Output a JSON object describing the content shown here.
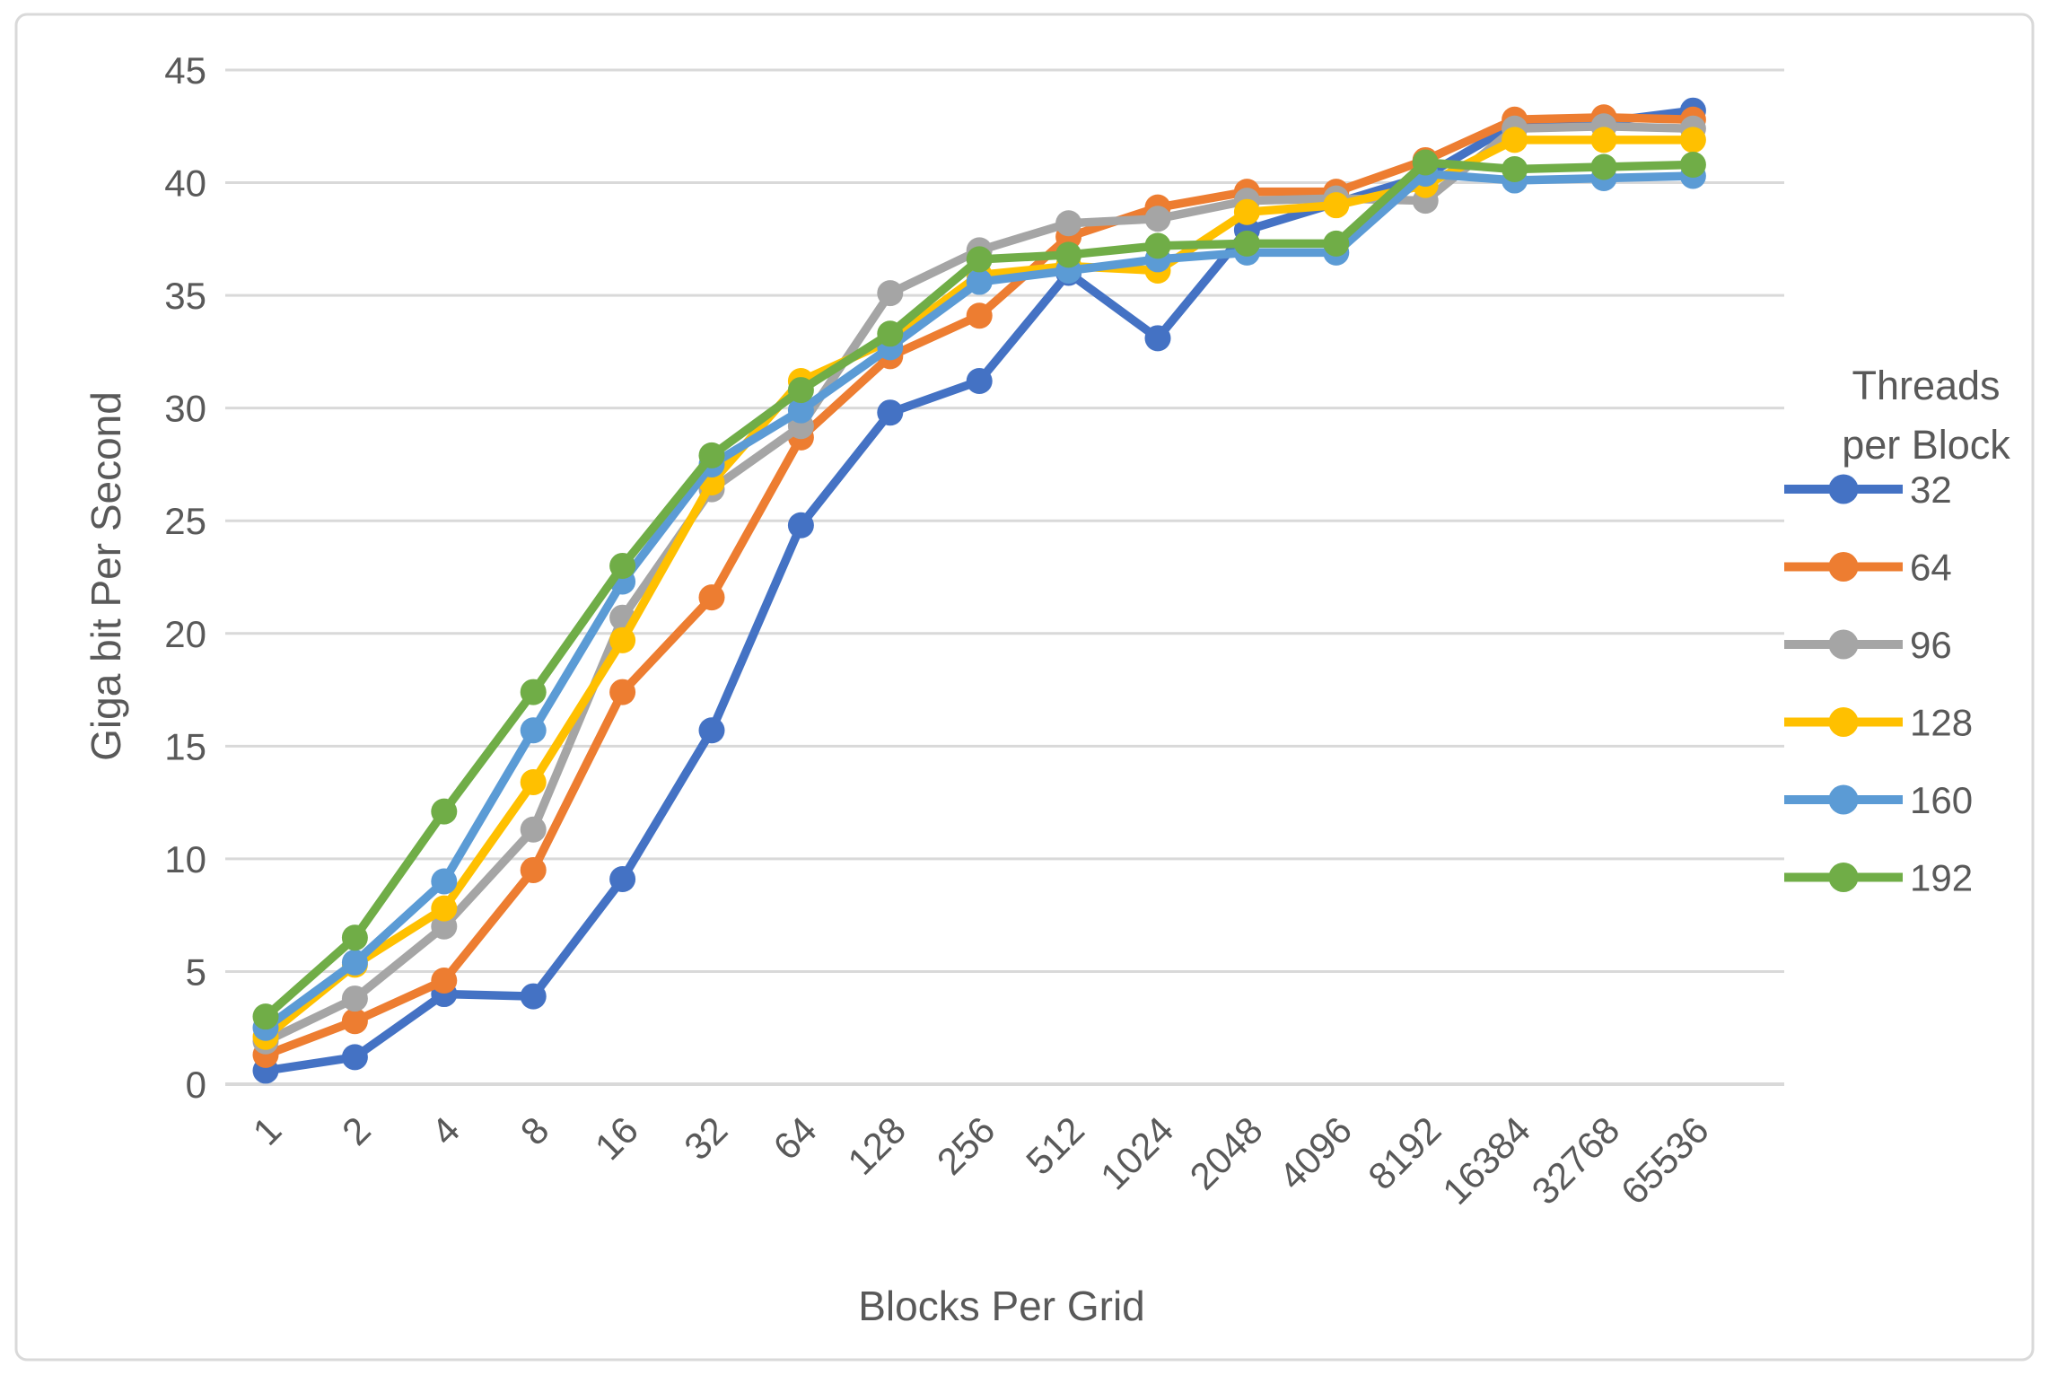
{
  "chart_data": {
    "type": "line",
    "title": "",
    "xlabel": "Blocks Per Grid",
    "ylabel": "Giga bit Per Second",
    "legend_title": "Threads per Block",
    "legend_title_lines": [
      "Threads",
      "per Block"
    ],
    "legend_position": "right",
    "grid": true,
    "ylim": [
      0,
      45
    ],
    "yticks": [
      0,
      5,
      10,
      15,
      20,
      25,
      30,
      35,
      40,
      45
    ],
    "categories": [
      "1",
      "2",
      "4",
      "8",
      "16",
      "32",
      "64",
      "128",
      "256",
      "512",
      "1024",
      "2048",
      "4096",
      "8192",
      "16384",
      "32768",
      "65536"
    ],
    "series": [
      {
        "name": "32",
        "color": "#4472C4",
        "values": [
          0.6,
          1.2,
          4.0,
          3.9,
          9.1,
          15.7,
          24.8,
          29.8,
          31.2,
          36.0,
          33.1,
          37.9,
          39.1,
          40.3,
          42.6,
          42.7,
          43.2
        ]
      },
      {
        "name": "64",
        "color": "#ED7D31",
        "values": [
          1.3,
          2.8,
          4.6,
          9.5,
          17.4,
          21.6,
          28.7,
          32.3,
          34.1,
          37.6,
          38.9,
          39.6,
          39.6,
          41.0,
          42.8,
          42.9,
          42.8
        ]
      },
      {
        "name": "96",
        "color": "#A5A5A5",
        "values": [
          1.9,
          3.8,
          7.0,
          11.3,
          20.7,
          26.4,
          29.2,
          35.1,
          37.0,
          38.2,
          38.4,
          39.2,
          39.3,
          39.2,
          42.4,
          42.5,
          42.4
        ]
      },
      {
        "name": "128",
        "color": "#FFC000",
        "values": [
          2.1,
          5.3,
          7.8,
          13.4,
          19.7,
          26.7,
          31.2,
          33.0,
          35.9,
          36.3,
          36.1,
          38.7,
          39.0,
          39.9,
          41.9,
          41.9,
          41.9
        ]
      },
      {
        "name": "160",
        "color": "#5B9BD5",
        "values": [
          2.5,
          5.4,
          9.0,
          15.7,
          22.3,
          27.5,
          29.9,
          32.7,
          35.6,
          36.1,
          36.6,
          36.9,
          36.9,
          40.4,
          40.1,
          40.2,
          40.3
        ]
      },
      {
        "name": "192",
        "color": "#70AD47",
        "values": [
          3.0,
          6.5,
          12.1,
          17.4,
          23.0,
          27.9,
          30.8,
          33.3,
          36.6,
          36.8,
          37.2,
          37.3,
          37.3,
          40.9,
          40.6,
          40.7,
          40.8
        ]
      }
    ],
    "colors": {
      "text": "#595959",
      "gridline": "#D9D9D9",
      "border": "#D9D9D9",
      "background": "#FFFFFF"
    }
  }
}
